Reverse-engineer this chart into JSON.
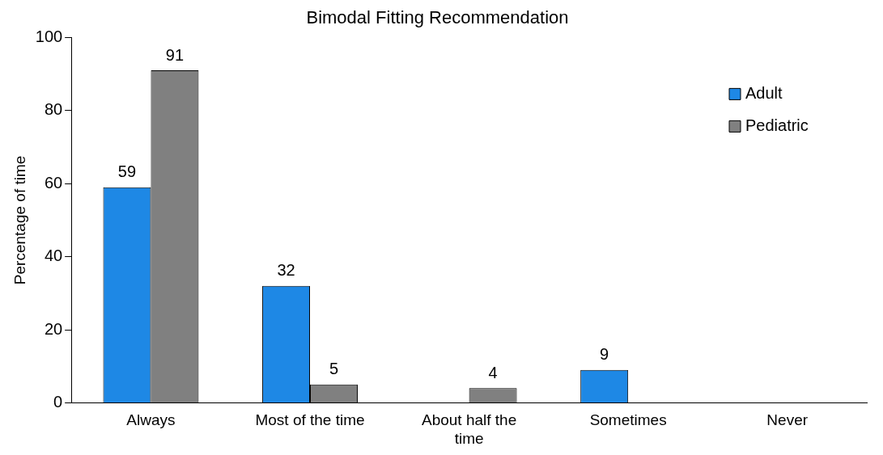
{
  "chart_data": {
    "type": "bar",
    "title": "Bimodal Fitting Recommendation",
    "ylabel": "Percentage of time",
    "categories": [
      "Always",
      "Most of the time",
      "About half the time",
      "Sometimes",
      "Never"
    ],
    "series": [
      {
        "name": "Adult",
        "color": "#1e88e5",
        "values": [
          59,
          32,
          null,
          9,
          null
        ]
      },
      {
        "name": "Pediatric",
        "color": "#808080",
        "values": [
          91,
          5,
          4,
          null,
          null
        ]
      }
    ],
    "ylim": [
      0,
      100
    ],
    "yticks": [
      0,
      20,
      40,
      60,
      80,
      100
    ],
    "grid": false,
    "legend": "top right",
    "data_labels": true
  }
}
